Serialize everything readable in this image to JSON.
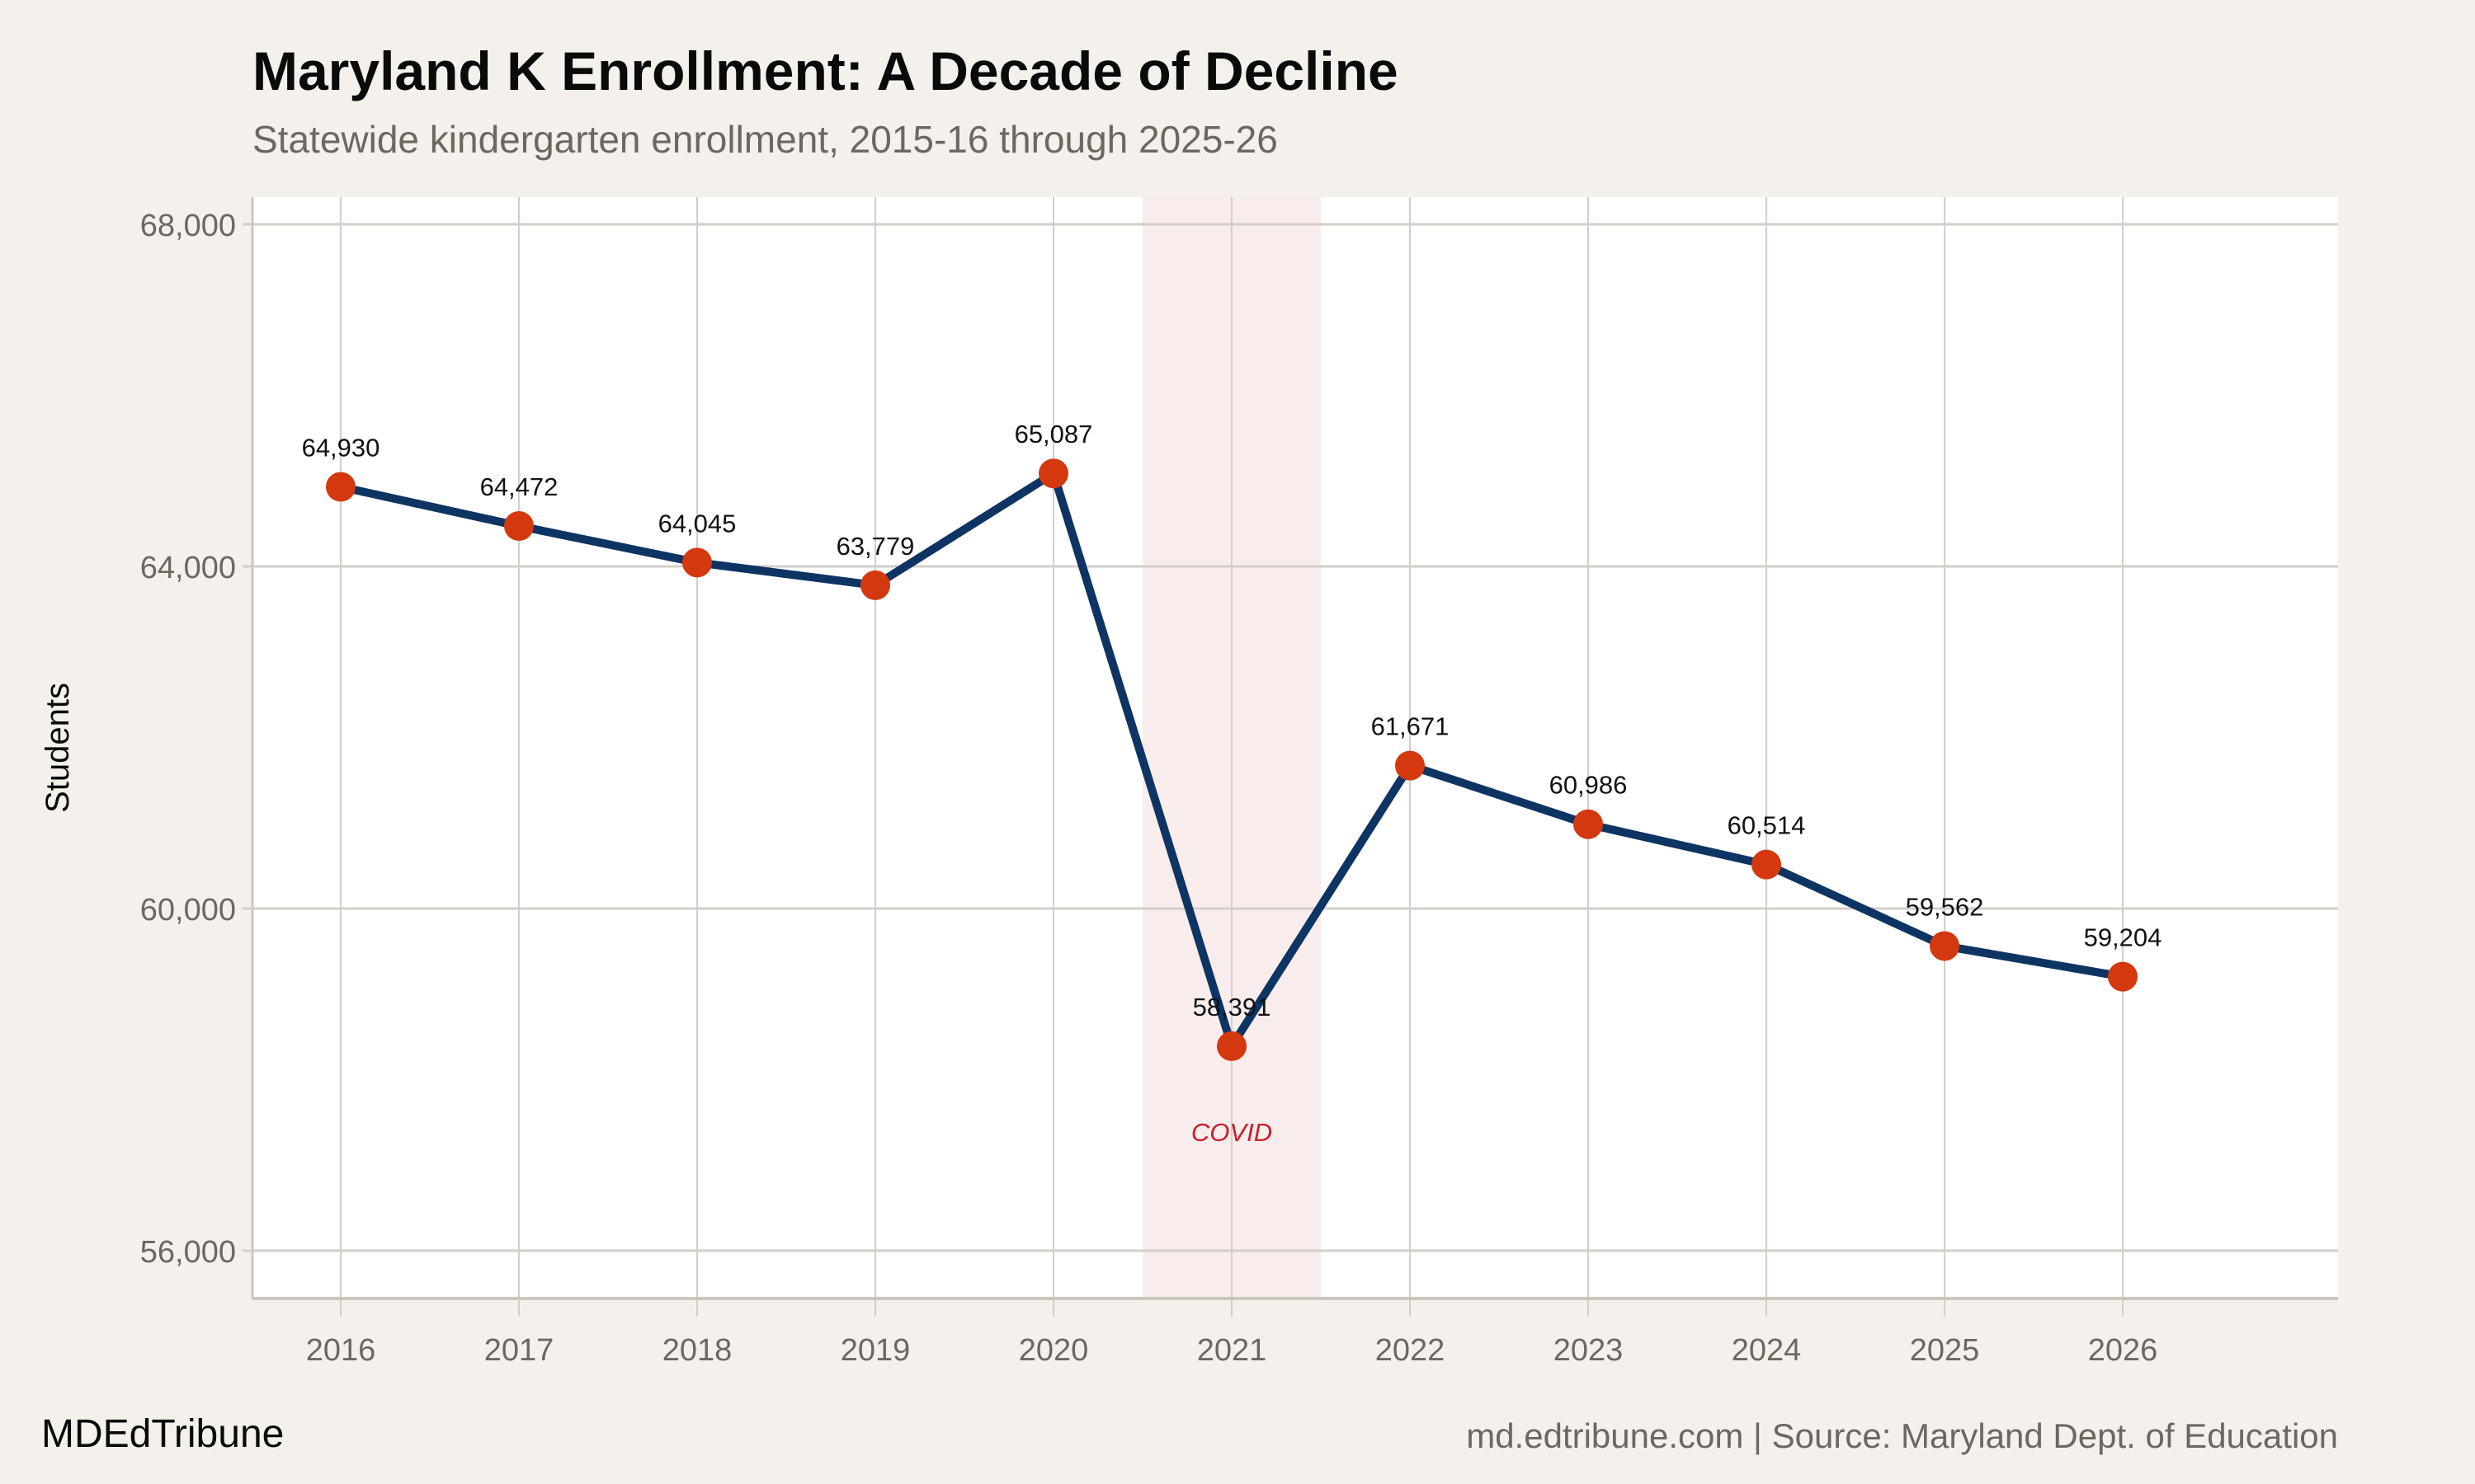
{
  "header": {
    "title": "Maryland K Enrollment: A Decade of Decline",
    "subtitle": "Statewide kindergarten enrollment, 2015-16 through 2025-26"
  },
  "footer": {
    "brand": "MDEdTribune",
    "source": "md.edtribune.com | Source: Maryland Dept. of Education"
  },
  "colors": {
    "background": "#f4f1ec",
    "panel": "#ffffff",
    "line": "#0d3463",
    "points": "#d4380f",
    "covid_band": "#f9eced",
    "covid_text": "#c8202a",
    "grid": "#d3cfc8"
  },
  "chart_data": {
    "type": "line",
    "title": "Maryland K Enrollment: A Decade of Decline",
    "subtitle": "Statewide kindergarten enrollment, 2015-16 through 2025-26",
    "xlabel": "",
    "ylabel": "Students",
    "x": [
      2016,
      2017,
      2018,
      2019,
      2020,
      2021,
      2022,
      2023,
      2024,
      2025,
      2026
    ],
    "values": [
      64930,
      64472,
      64045,
      63779,
      65087,
      58391,
      61671,
      60986,
      60514,
      59562,
      59204
    ],
    "data_labels": [
      "64,930",
      "64,472",
      "64,045",
      "63,779",
      "65,087",
      "58,391",
      "61,671",
      "60,986",
      "60,514",
      "59,562",
      "59,204"
    ],
    "yticks": [
      56000,
      60000,
      64000,
      68000
    ],
    "ytick_labels": [
      "56,000",
      "60,000",
      "64,000",
      "68,000"
    ],
    "xtick_labels": [
      "2016",
      "2017",
      "2018",
      "2019",
      "2020",
      "2021",
      "2022",
      "2023",
      "2024",
      "2025",
      "2026"
    ],
    "xlim": [
      2015.5,
      2027.2
    ],
    "ylim": [
      55450,
      68300
    ],
    "grid": true,
    "annotations": [
      {
        "type": "band",
        "x_range": [
          2020.5,
          2021.5
        ],
        "label": "COVID",
        "label_y": 57400
      }
    ]
  }
}
